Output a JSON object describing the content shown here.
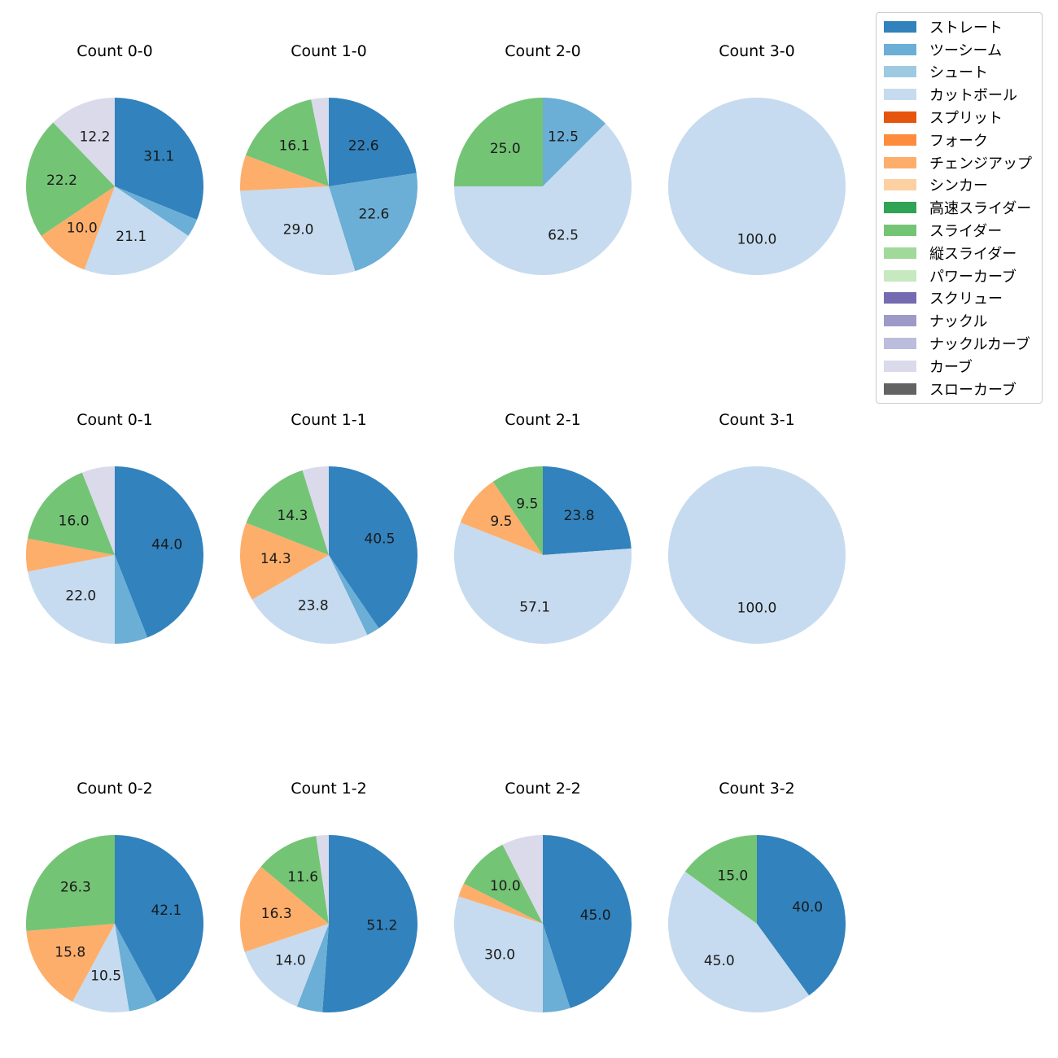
{
  "legend": [
    {
      "name": "ストレート",
      "color": "#3182bd"
    },
    {
      "name": "ツーシーム",
      "color": "#6baed6"
    },
    {
      "name": "シュート",
      "color": "#9ecae1"
    },
    {
      "name": "カットボール",
      "color": "#c6dbef"
    },
    {
      "name": "スプリット",
      "color": "#e6550d"
    },
    {
      "name": "フォーク",
      "color": "#fd8d3c"
    },
    {
      "name": "チェンジアップ",
      "color": "#fdae6b"
    },
    {
      "name": "シンカー",
      "color": "#fdd0a2"
    },
    {
      "name": "高速スライダー",
      "color": "#31a354"
    },
    {
      "name": "スライダー",
      "color": "#74c476"
    },
    {
      "name": "縦スライダー",
      "color": "#a1d99b"
    },
    {
      "name": "パワーカーブ",
      "color": "#c7e9c0"
    },
    {
      "name": "スクリュー",
      "color": "#756bb1"
    },
    {
      "name": "ナックル",
      "color": "#9e9ac8"
    },
    {
      "name": "ナックルカーブ",
      "color": "#bcbddc"
    },
    {
      "name": "カーブ",
      "color": "#dadaeb"
    },
    {
      "name": "スローカーブ",
      "color": "#636363"
    }
  ],
  "chart_data": [
    {
      "type": "pie",
      "title": "Count 0-0",
      "slices": [
        {
          "pitch": "ストレート",
          "value": 31.1,
          "label": "31.1"
        },
        {
          "pitch": "ツーシーム",
          "value": 3.3,
          "label": ""
        },
        {
          "pitch": "カットボール",
          "value": 21.1,
          "label": "21.1"
        },
        {
          "pitch": "チェンジアップ",
          "value": 10.0,
          "label": "10.0"
        },
        {
          "pitch": "スライダー",
          "value": 22.2,
          "label": "22.2"
        },
        {
          "pitch": "カーブ",
          "value": 12.2,
          "label": "12.2"
        }
      ]
    },
    {
      "type": "pie",
      "title": "Count 1-0",
      "slices": [
        {
          "pitch": "ストレート",
          "value": 22.6,
          "label": "22.6"
        },
        {
          "pitch": "ツーシーム",
          "value": 22.6,
          "label": "22.6"
        },
        {
          "pitch": "カットボール",
          "value": 29.0,
          "label": "29.0"
        },
        {
          "pitch": "チェンジアップ",
          "value": 6.5,
          "label": ""
        },
        {
          "pitch": "スライダー",
          "value": 16.1,
          "label": "16.1"
        },
        {
          "pitch": "カーブ",
          "value": 3.2,
          "label": ""
        }
      ]
    },
    {
      "type": "pie",
      "title": "Count 2-0",
      "slices": [
        {
          "pitch": "ツーシーム",
          "value": 12.5,
          "label": "12.5"
        },
        {
          "pitch": "カットボール",
          "value": 62.5,
          "label": "62.5"
        },
        {
          "pitch": "スライダー",
          "value": 25.0,
          "label": "25.0"
        }
      ]
    },
    {
      "type": "pie",
      "title": "Count 3-0",
      "slices": [
        {
          "pitch": "カットボール",
          "value": 100.0,
          "label": "100.0"
        }
      ]
    },
    {
      "type": "pie",
      "title": "Count 0-1",
      "slices": [
        {
          "pitch": "ストレート",
          "value": 44.0,
          "label": "44.0"
        },
        {
          "pitch": "ツーシーム",
          "value": 6.0,
          "label": ""
        },
        {
          "pitch": "カットボール",
          "value": 22.0,
          "label": "22.0"
        },
        {
          "pitch": "チェンジアップ",
          "value": 6.0,
          "label": ""
        },
        {
          "pitch": "スライダー",
          "value": 16.0,
          "label": "16.0"
        },
        {
          "pitch": "カーブ",
          "value": 6.0,
          "label": ""
        }
      ]
    },
    {
      "type": "pie",
      "title": "Count 1-1",
      "slices": [
        {
          "pitch": "ストレート",
          "value": 40.5,
          "label": "40.5"
        },
        {
          "pitch": "ツーシーム",
          "value": 2.4,
          "label": ""
        },
        {
          "pitch": "カットボール",
          "value": 23.8,
          "label": "23.8"
        },
        {
          "pitch": "チェンジアップ",
          "value": 14.3,
          "label": "14.3"
        },
        {
          "pitch": "スライダー",
          "value": 14.3,
          "label": "14.3"
        },
        {
          "pitch": "カーブ",
          "value": 4.8,
          "label": ""
        }
      ]
    },
    {
      "type": "pie",
      "title": "Count 2-1",
      "slices": [
        {
          "pitch": "ストレート",
          "value": 23.8,
          "label": "23.8"
        },
        {
          "pitch": "カットボール",
          "value": 57.1,
          "label": "57.1"
        },
        {
          "pitch": "チェンジアップ",
          "value": 9.5,
          "label": "9.5"
        },
        {
          "pitch": "スライダー",
          "value": 9.5,
          "label": "9.5"
        }
      ]
    },
    {
      "type": "pie",
      "title": "Count 3-1",
      "slices": [
        {
          "pitch": "カットボール",
          "value": 100.0,
          "label": "100.0"
        }
      ]
    },
    {
      "type": "pie",
      "title": "Count 0-2",
      "slices": [
        {
          "pitch": "ストレート",
          "value": 42.1,
          "label": "42.1"
        },
        {
          "pitch": "ツーシーム",
          "value": 5.3,
          "label": ""
        },
        {
          "pitch": "カットボール",
          "value": 10.5,
          "label": "10.5"
        },
        {
          "pitch": "チェンジアップ",
          "value": 15.8,
          "label": "15.8"
        },
        {
          "pitch": "スライダー",
          "value": 26.3,
          "label": "26.3"
        }
      ]
    },
    {
      "type": "pie",
      "title": "Count 1-2",
      "slices": [
        {
          "pitch": "ストレート",
          "value": 51.2,
          "label": "51.2"
        },
        {
          "pitch": "ツーシーム",
          "value": 4.7,
          "label": ""
        },
        {
          "pitch": "カットボール",
          "value": 14.0,
          "label": "14.0"
        },
        {
          "pitch": "チェンジアップ",
          "value": 16.3,
          "label": "16.3"
        },
        {
          "pitch": "スライダー",
          "value": 11.6,
          "label": "11.6"
        },
        {
          "pitch": "カーブ",
          "value": 2.3,
          "label": ""
        }
      ]
    },
    {
      "type": "pie",
      "title": "Count 2-2",
      "slices": [
        {
          "pitch": "ストレート",
          "value": 45.0,
          "label": "45.0"
        },
        {
          "pitch": "ツーシーム",
          "value": 5.0,
          "label": ""
        },
        {
          "pitch": "カットボール",
          "value": 30.0,
          "label": "30.0"
        },
        {
          "pitch": "チェンジアップ",
          "value": 2.5,
          "label": ""
        },
        {
          "pitch": "スライダー",
          "value": 10.0,
          "label": "10.0"
        },
        {
          "pitch": "カーブ",
          "value": 7.5,
          "label": ""
        }
      ]
    },
    {
      "type": "pie",
      "title": "Count 3-2",
      "slices": [
        {
          "pitch": "ストレート",
          "value": 40.0,
          "label": "40.0"
        },
        {
          "pitch": "カットボール",
          "value": 45.0,
          "label": "45.0"
        },
        {
          "pitch": "スライダー",
          "value": 15.0,
          "label": "15.0"
        }
      ]
    }
  ]
}
